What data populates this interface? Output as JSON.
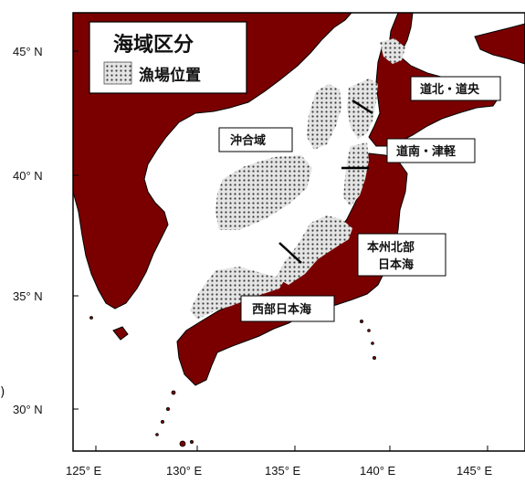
{
  "legend": {
    "title": "海域区分",
    "item_label": "漁場位置"
  },
  "regions": {
    "offshore": "沖合域",
    "dohoku": "道北・道央",
    "donan": "道南・津軽",
    "honshu_line1": "本州北部",
    "honshu_line2": "日本海",
    "seibu": "西部日本海"
  },
  "axes": {
    "lat": [
      "45° N",
      "40° N",
      "35° N",
      "30° N"
    ],
    "lon": [
      "125° E",
      "130° E",
      "135° E",
      "140° E",
      "145° E"
    ]
  },
  "colors": {
    "land": "#7a0000",
    "sea": "#ffffff",
    "fishing": "#cfcfcf",
    "dots": "#444444"
  }
}
